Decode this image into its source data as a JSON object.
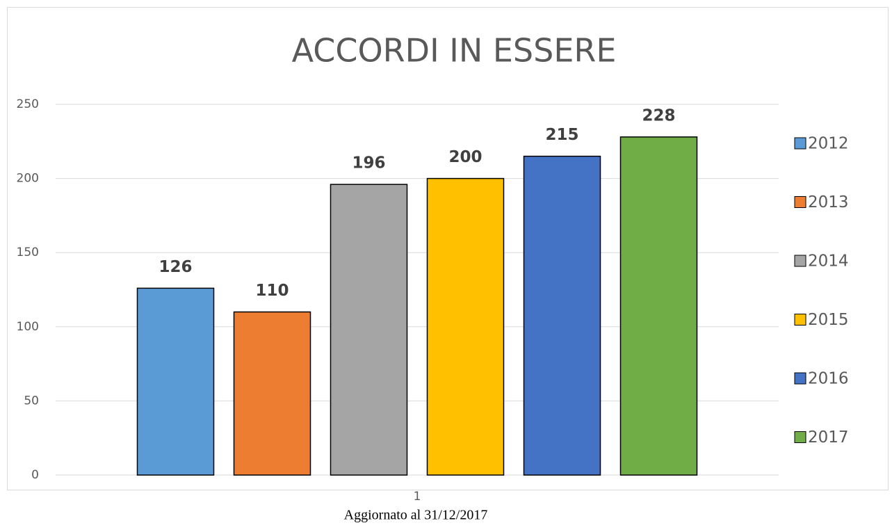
{
  "chart_data": {
    "type": "bar",
    "title": "ACCORDI IN ESSERE",
    "categories": [
      "1"
    ],
    "series": [
      {
        "name": "2012",
        "color": "#5b9bd5",
        "values": [
          126
        ]
      },
      {
        "name": "2013",
        "color": "#ed7d31",
        "values": [
          110
        ]
      },
      {
        "name": "2014",
        "color": "#a5a5a5",
        "values": [
          196
        ]
      },
      {
        "name": "2015",
        "color": "#ffc000",
        "values": [
          200
        ]
      },
      {
        "name": "2016",
        "color": "#4472c4",
        "values": [
          215
        ]
      },
      {
        "name": "2017",
        "color": "#70ad47",
        "values": [
          228
        ]
      }
    ],
    "ylim": [
      0,
      250
    ],
    "yticks": [
      0,
      50,
      100,
      150,
      200,
      250
    ],
    "grid": true,
    "legend": "right"
  },
  "caption": "Aggiornato al 31/12/2017"
}
